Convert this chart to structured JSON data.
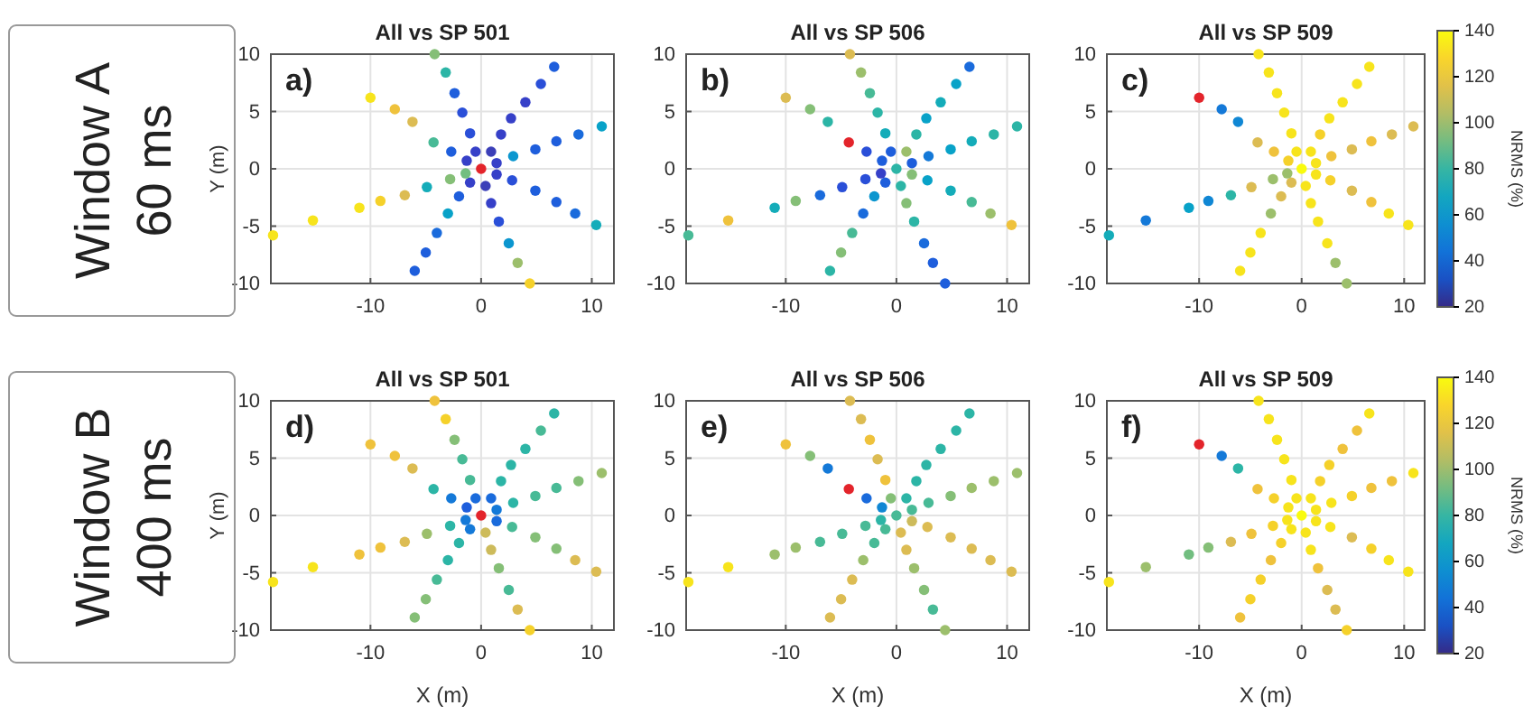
{
  "chart_data": [
    {
      "type": "scatter",
      "title": "All vs SP 501",
      "ylabel": "Y (m)",
      "xlim": [
        -19,
        12
      ],
      "ylim": [
        -10,
        10
      ],
      "xticks": [
        -10,
        0,
        10
      ],
      "yticks": [
        -10,
        -5,
        0,
        5,
        10
      ],
      "grid": true,
      "marker": "circle",
      "annotations": [
        "a)",
        "Window A",
        "60 ms"
      ],
      "series": [
        {
          "x": [
            -4.2,
            -3.2,
            -2.4,
            -1.7,
            -1,
            -0.5,
            6.6,
            5.4,
            4,
            2.7,
            1.8,
            0.9,
            10.9,
            8.8,
            6.8,
            4.9,
            2.9,
            1.4,
            10.4,
            8.5,
            6.8,
            4.9,
            2.8,
            1.4,
            4.4,
            3.3,
            2.5,
            1.6,
            0.9,
            0.4,
            -6,
            -5,
            -4,
            -3,
            -2,
            -1,
            -18.8,
            -15.2,
            -11,
            -9.1,
            -6.9,
            -4.9,
            -2.8,
            -1.4,
            -10,
            -7.8,
            -6.2,
            -4.3,
            -2.7,
            -1.3
          ],
          "values": [
            10,
            8.4,
            6.6,
            4.9,
            3.1,
            1.5,
            8.9,
            7.4,
            5.8,
            4.4,
            3,
            1.5,
            3.7,
            3,
            2.4,
            1.7,
            1.1,
            0.5,
            -4.9,
            -3.9,
            -2.9,
            -1.9,
            -1,
            -0.5,
            -10,
            -8.2,
            -6.5,
            -4.6,
            -3,
            -1.5,
            -8.9,
            -7.3,
            -5.6,
            -3.9,
            -2.4,
            -1.2,
            -5.8,
            -4.5,
            -3.4,
            -2.8,
            -2.3,
            -1.6,
            -0.9,
            -0.4,
            6.2,
            5.2,
            4.1,
            2.3,
            1.5,
            0.7
          ],
          "colors": [
            "#85bf77",
            "#2cb5a6",
            "#1e5edc",
            "#2a4fd8",
            "#2a4fd8",
            "#3640c8",
            "#1e5edc",
            "#2a4fd8",
            "#3640c8",
            "#3640c8",
            "#3640c8",
            "#3b3fb8",
            "#08a2c8",
            "#1a6bdc",
            "#1e5edc",
            "#1e5edc",
            "#0b96cf",
            "#3640c8",
            "#14acb9",
            "#1a6bdc",
            "#1e5edc",
            "#1e5edc",
            "#2a4fd8",
            "#3640c8",
            "#f5d12a",
            "#9cbf6c",
            "#0b96cf",
            "#2a4fd8",
            "#3640c8",
            "#3b3fb8",
            "#1e5edc",
            "#1e5edc",
            "#1a6bdc",
            "#08a2c8",
            "#1e5edc",
            "#3640c8",
            "#f7e41c",
            "#f7e41c",
            "#f7e41c",
            "#f5d12a",
            "#dcbc53",
            "#14acb9",
            "#85bf77",
            "#72be80",
            "#f7e41c",
            "#efc23c",
            "#dcbc53",
            "#48ba96",
            "#1e5edc",
            "#3640c8"
          ]
        },
        {
          "x": [
            0
          ],
          "values": [
            0
          ],
          "color": "#e3242b"
        }
      ]
    },
    {
      "type": "scatter",
      "title": "All vs SP 506",
      "xlim": [
        -19,
        12
      ],
      "ylim": [
        -10,
        10
      ],
      "xticks": [
        -10,
        0,
        10
      ],
      "yticks": [
        -10,
        -5,
        0,
        5,
        10
      ],
      "grid": true,
      "marker": "circle",
      "annotations": [
        "b)"
      ],
      "series": [
        {
          "x": [
            -4.2,
            -3.2,
            -2.4,
            -1.7,
            -1,
            -0.5,
            6.6,
            5.4,
            4,
            2.7,
            1.8,
            0.9,
            10.9,
            8.8,
            6.8,
            4.9,
            2.9,
            1.4,
            10.4,
            8.5,
            6.8,
            4.9,
            2.8,
            1.4,
            4.4,
            3.3,
            2.5,
            1.6,
            0.9,
            0.4,
            -6,
            -5,
            -4,
            -3,
            -2,
            -1,
            -18.8,
            -15.2,
            -11,
            -9.1,
            -6.9,
            -4.9,
            -2.8,
            -1.4,
            -10,
            -7.8,
            -6.2,
            -2.7,
            -1.3,
            0
          ],
          "values": [
            10,
            8.4,
            6.6,
            4.9,
            3.1,
            1.5,
            8.9,
            7.4,
            5.8,
            4.4,
            3,
            1.5,
            3.7,
            3,
            2.4,
            1.7,
            1.1,
            0.5,
            -4.9,
            -3.9,
            -2.9,
            -1.9,
            -1,
            -0.5,
            -10,
            -8.2,
            -6.5,
            -4.6,
            -3,
            -1.5,
            -8.9,
            -7.3,
            -5.6,
            -3.9,
            -2.4,
            -1.2,
            -5.8,
            -4.5,
            -3.4,
            -2.8,
            -2.3,
            -1.6,
            -0.9,
            -0.4,
            6.2,
            5.2,
            4.1,
            1.5,
            0.7,
            0
          ],
          "colors": [
            "#dcbc53",
            "#9cbf6c",
            "#48ba96",
            "#2cb5a6",
            "#14acb9",
            "#1e5edc",
            "#1a6bdc",
            "#08a2c8",
            "#14acb9",
            "#08a2c8",
            "#2cb5a6",
            "#9cbf6c",
            "#2cb5a6",
            "#2cb5a6",
            "#14acb9",
            "#08a2c8",
            "#1479d8",
            "#1e5edc",
            "#efc23c",
            "#9cbf6c",
            "#48ba96",
            "#14acb9",
            "#08a2c8",
            "#85bf77",
            "#1e5edc",
            "#1e5edc",
            "#1a6bdc",
            "#2cb5a6",
            "#85bf77",
            "#2cb5a6",
            "#2cb5a6",
            "#85bf77",
            "#48ba96",
            "#1a6bdc",
            "#0b96cf",
            "#1e5edc",
            "#48ba96",
            "#efc23c",
            "#14acb9",
            "#85bf77",
            "#1a6bdc",
            "#2a4fd8",
            "#2a4fd8",
            "#3640c8",
            "#dcbc53",
            "#85bf77",
            "#2cb5a6",
            "#2a4fd8",
            "#1e5edc",
            "#2cb5a6"
          ]
        },
        {
          "x": [
            -4.3
          ],
          "values": [
            2.3
          ],
          "color": "#e3242b"
        }
      ]
    },
    {
      "type": "scatter",
      "title": "All vs SP 509",
      "clabel": "NRMS (%)",
      "xlim": [
        -19,
        12
      ],
      "ylim": [
        -10,
        10
      ],
      "xticks": [
        -10,
        0,
        10
      ],
      "yticks": [
        -10,
        -5,
        0,
        5,
        10
      ],
      "grid": true,
      "marker": "circle",
      "clim": [
        20,
        140
      ],
      "cticks": [
        20,
        40,
        60,
        80,
        100,
        120,
        140
      ],
      "annotations": [
        "c)"
      ],
      "series": [
        {
          "x": [
            -4.2,
            -3.2,
            -2.4,
            -1.7,
            -1,
            -0.5,
            6.6,
            5.4,
            4,
            2.7,
            1.8,
            0.9,
            10.9,
            8.8,
            6.8,
            4.9,
            2.9,
            1.4,
            10.4,
            8.5,
            6.8,
            4.9,
            2.8,
            1.4,
            4.4,
            3.3,
            2.5,
            1.6,
            0.9,
            0.4,
            -6,
            -5,
            -4,
            -3,
            -2,
            -1,
            -18.8,
            -15.2,
            -11,
            -9.1,
            -6.9,
            -4.9,
            -2.8,
            -1.4,
            -7.8,
            -6.2,
            -4.3,
            -2.7,
            -1.3,
            0
          ],
          "values": [
            10,
            8.4,
            6.6,
            4.9,
            3.1,
            1.5,
            8.9,
            7.4,
            5.8,
            4.4,
            3,
            1.5,
            3.7,
            3,
            2.4,
            1.7,
            1.1,
            0.5,
            -4.9,
            -3.9,
            -2.9,
            -1.9,
            -1,
            -0.5,
            -10,
            -8.2,
            -6.5,
            -4.6,
            -3,
            -1.5,
            -8.9,
            -7.3,
            -5.6,
            -3.9,
            -2.4,
            -1.2,
            -5.8,
            -4.5,
            -3.4,
            -2.8,
            -2.3,
            -1.6,
            -0.9,
            -0.4,
            5.2,
            4.1,
            2.3,
            1.5,
            0.7,
            0
          ],
          "colors": [
            "#f7e41c",
            "#f7e41c",
            "#f7e41c",
            "#f7e41c",
            "#f7e41c",
            "#f7e41c",
            "#f7e41c",
            "#f7e41c",
            "#f7e41c",
            "#f7e41c",
            "#f5d12a",
            "#f7e41c",
            "#dcbc53",
            "#dcbc53",
            "#efc23c",
            "#dcbc53",
            "#efc23c",
            "#f7e41c",
            "#f7e41c",
            "#f7e41c",
            "#efc23c",
            "#dcbc53",
            "#f5d12a",
            "#f7e41c",
            "#9cbf6c",
            "#9cbf6c",
            "#f7e41c",
            "#f7e41c",
            "#f7e41c",
            "#f7e41c",
            "#f7e41c",
            "#f7e41c",
            "#f7e41c",
            "#9cbf6c",
            "#dcbc53",
            "#dcbc53",
            "#14acb9",
            "#1479d8",
            "#08a2c8",
            "#1087d4",
            "#2cb5a6",
            "#dcbc53",
            "#9cbf6c",
            "#9cbf6c",
            "#1479d8",
            "#1087d4",
            "#dcbc53",
            "#efc23c",
            "#f5d12a",
            "#f9fb0e"
          ]
        },
        {
          "x": [
            -10
          ],
          "values": [
            6.2
          ],
          "color": "#e3242b"
        }
      ]
    },
    {
      "type": "scatter",
      "title": "All vs SP 501",
      "xlabel": "X (m)",
      "ylabel": "Y (m)",
      "xlim": [
        -19,
        12
      ],
      "ylim": [
        -10,
        10
      ],
      "xticks": [
        -10,
        0,
        10
      ],
      "yticks": [
        -10,
        -5,
        0,
        5,
        10
      ],
      "grid": true,
      "marker": "circle",
      "annotations": [
        "d)",
        "Window B",
        "400 ms"
      ],
      "series": [
        {
          "x": [
            -4.2,
            -3.2,
            -2.4,
            -1.7,
            -1,
            -0.5,
            6.6,
            5.4,
            4,
            2.7,
            1.8,
            0.9,
            10.9,
            8.8,
            6.8,
            4.9,
            2.9,
            1.4,
            10.4,
            8.5,
            6.8,
            4.9,
            2.8,
            1.4,
            4.4,
            3.3,
            2.5,
            1.6,
            0.9,
            0.4,
            -6,
            -5,
            -4,
            -3,
            -2,
            -1,
            -18.8,
            -15.2,
            -11,
            -9.1,
            -6.9,
            -4.9,
            -2.8,
            -1.4,
            -10,
            -7.8,
            -6.2,
            -4.3,
            -2.7,
            -1.3
          ],
          "values": [
            10,
            8.4,
            6.6,
            4.9,
            3.1,
            1.5,
            8.9,
            7.4,
            5.8,
            4.4,
            3,
            1.5,
            3.7,
            3,
            2.4,
            1.7,
            1.1,
            0.5,
            -4.9,
            -3.9,
            -2.9,
            -1.9,
            -1,
            -0.5,
            -10,
            -8.2,
            -6.5,
            -4.6,
            -3,
            -1.5,
            -8.9,
            -7.3,
            -5.6,
            -3.9,
            -2.4,
            -1.2,
            -5.8,
            -4.5,
            -3.4,
            -2.8,
            -2.3,
            -1.6,
            -0.9,
            -0.4,
            6.2,
            5.2,
            4.1,
            2.3,
            1.5,
            0.7
          ],
          "colors": [
            "#efc23c",
            "#f5d12a",
            "#85bf77",
            "#48ba96",
            "#48ba96",
            "#1a6bdc",
            "#2cb5a6",
            "#48ba96",
            "#2cb5a6",
            "#2cb5a6",
            "#2cb5a6",
            "#1a6bdc",
            "#9cbf6c",
            "#85bf77",
            "#48ba96",
            "#48ba96",
            "#2cb5a6",
            "#1479d8",
            "#dcbc53",
            "#dcbc53",
            "#85bf77",
            "#85bf77",
            "#48ba96",
            "#1a6bdc",
            "#f5d12a",
            "#dcbc53",
            "#48ba96",
            "#85bf77",
            "#cdbb5b",
            "#cdbb5b",
            "#85bf77",
            "#85bf77",
            "#48ba96",
            "#2cb5a6",
            "#2cb5a6",
            "#1479d8",
            "#f7e41c",
            "#f7e41c",
            "#efc23c",
            "#efc23c",
            "#dcbc53",
            "#9cbf6c",
            "#2cb5a6",
            "#1479d8",
            "#efc23c",
            "#efc23c",
            "#dcbc53",
            "#2cb5a6",
            "#1479d8",
            "#1e5edc"
          ]
        },
        {
          "x": [
            0
          ],
          "values": [
            0
          ],
          "color": "#e3242b"
        }
      ]
    },
    {
      "type": "scatter",
      "title": "All vs SP 506",
      "xlabel": "X (m)",
      "xlim": [
        -19,
        12
      ],
      "ylim": [
        -10,
        10
      ],
      "xticks": [
        -10,
        0,
        10
      ],
      "yticks": [
        -10,
        -5,
        0,
        5,
        10
      ],
      "grid": true,
      "marker": "circle",
      "annotations": [
        "e)"
      ],
      "series": [
        {
          "x": [
            -4.2,
            -3.2,
            -2.4,
            -1.7,
            -1,
            -0.5,
            6.6,
            5.4,
            4,
            2.7,
            1.8,
            0.9,
            10.9,
            8.8,
            6.8,
            4.9,
            2.9,
            1.4,
            10.4,
            8.5,
            6.8,
            4.9,
            2.8,
            1.4,
            4.4,
            3.3,
            2.5,
            1.6,
            0.9,
            0.4,
            -6,
            -5,
            -4,
            -3,
            -2,
            -1,
            -18.8,
            -15.2,
            -11,
            -9.1,
            -6.9,
            -4.9,
            -2.8,
            -1.4,
            -10,
            -7.8,
            -6.2,
            -2.7,
            -1.3,
            0
          ],
          "values": [
            10,
            8.4,
            6.6,
            4.9,
            3.1,
            1.5,
            8.9,
            7.4,
            5.8,
            4.4,
            3,
            1.5,
            3.7,
            3,
            2.4,
            1.7,
            1.1,
            0.5,
            -4.9,
            -3.9,
            -2.9,
            -1.9,
            -1,
            -0.5,
            -10,
            -8.2,
            -6.5,
            -4.6,
            -3,
            -1.5,
            -8.9,
            -7.3,
            -5.6,
            -3.9,
            -2.4,
            -1.2,
            -5.8,
            -4.5,
            -3.4,
            -2.8,
            -2.3,
            -1.6,
            -0.9,
            -0.4,
            6.2,
            5.2,
            4.1,
            1.5,
            0.7,
            0
          ],
          "colors": [
            "#dcbc53",
            "#dcbc53",
            "#efc23c",
            "#dcbc53",
            "#efc23c",
            "#85bf77",
            "#2cb5a6",
            "#2cb5a6",
            "#2cb5a6",
            "#2cb5a6",
            "#2cb5a6",
            "#2cb5a6",
            "#9cbf6c",
            "#9cbf6c",
            "#9cbf6c",
            "#85bf77",
            "#48ba96",
            "#48ba96",
            "#dcbc53",
            "#dcbc53",
            "#dcbc53",
            "#dcbc53",
            "#dcbc53",
            "#cdbb5b",
            "#9cbf6c",
            "#48ba96",
            "#85bf77",
            "#9cbf6c",
            "#dcbc53",
            "#dcbc53",
            "#dcbc53",
            "#dcbc53",
            "#dcbc53",
            "#9cbf6c",
            "#48ba96",
            "#48ba96",
            "#f7e41c",
            "#f7e41c",
            "#9cbf6c",
            "#9cbf6c",
            "#48ba96",
            "#48ba96",
            "#48ba96",
            "#2cb5a6",
            "#efc23c",
            "#85bf77",
            "#1479d8",
            "#1a6bdc",
            "#1087d4",
            "#48ba96"
          ]
        },
        {
          "x": [
            -4.3
          ],
          "values": [
            2.3
          ],
          "color": "#e3242b"
        }
      ]
    },
    {
      "type": "scatter",
      "title": "All vs SP 509",
      "xlabel": "X (m)",
      "clabel": "NRMS (%)",
      "xlim": [
        -19,
        12
      ],
      "ylim": [
        -10,
        10
      ],
      "xticks": [
        -10,
        0,
        10
      ],
      "yticks": [
        -10,
        -5,
        0,
        5,
        10
      ],
      "grid": true,
      "marker": "circle",
      "clim": [
        20,
        140
      ],
      "cticks": [
        20,
        40,
        60,
        80,
        100,
        120,
        140
      ],
      "annotations": [
        "f)"
      ],
      "series": [
        {
          "x": [
            -4.2,
            -3.2,
            -2.4,
            -1.7,
            -1,
            -0.5,
            6.6,
            5.4,
            4,
            2.7,
            1.8,
            0.9,
            10.9,
            8.8,
            6.8,
            4.9,
            2.9,
            1.4,
            10.4,
            8.5,
            6.8,
            4.9,
            2.8,
            1.4,
            4.4,
            3.3,
            2.5,
            1.6,
            0.9,
            0.4,
            -6,
            -5,
            -4,
            -3,
            -2,
            -1,
            -18.8,
            -15.2,
            -11,
            -9.1,
            -6.9,
            -4.9,
            -2.8,
            -1.4,
            -7.8,
            -6.2,
            -4.3,
            -2.7,
            -1.3,
            0
          ],
          "values": [
            10,
            8.4,
            6.6,
            4.9,
            3.1,
            1.5,
            8.9,
            7.4,
            5.8,
            4.4,
            3,
            1.5,
            3.7,
            3,
            2.4,
            1.7,
            1.1,
            0.5,
            -4.9,
            -3.9,
            -2.9,
            -1.9,
            -1,
            -0.5,
            -10,
            -8.2,
            -6.5,
            -4.6,
            -3,
            -1.5,
            -8.9,
            -7.3,
            -5.6,
            -3.9,
            -2.4,
            -1.2,
            -5.8,
            -4.5,
            -3.4,
            -2.8,
            -2.3,
            -1.6,
            -0.9,
            -0.4,
            5.2,
            4.1,
            2.3,
            1.5,
            0.7,
            0
          ],
          "colors": [
            "#f7e41c",
            "#f7e41c",
            "#f7e41c",
            "#f7e41c",
            "#f7e41c",
            "#f7e41c",
            "#f7e41c",
            "#efc23c",
            "#efc23c",
            "#f5d12a",
            "#f5d12a",
            "#f7e41c",
            "#f7e41c",
            "#efc23c",
            "#efc23c",
            "#f5d12a",
            "#f7e41c",
            "#f7e41c",
            "#f7e41c",
            "#f7e41c",
            "#f5d12a",
            "#dcbc53",
            "#f7e41c",
            "#f7e41c",
            "#f5d12a",
            "#dcbc53",
            "#dcbc53",
            "#efc23c",
            "#f7e41c",
            "#f7e41c",
            "#efc23c",
            "#f5d12a",
            "#f5d12a",
            "#efc23c",
            "#f5d12a",
            "#f7e41c",
            "#f7e41c",
            "#9cbf6c",
            "#72be80",
            "#85bf77",
            "#dcbc53",
            "#efc23c",
            "#f5d12a",
            "#f7e41c",
            "#1479d8",
            "#2cb5a6",
            "#efc23c",
            "#f5d12a",
            "#f7e41c",
            "#f9fb0e"
          ]
        },
        {
          "x": [
            -10
          ],
          "values": [
            6.2
          ],
          "color": "#e3242b"
        }
      ]
    }
  ]
}
